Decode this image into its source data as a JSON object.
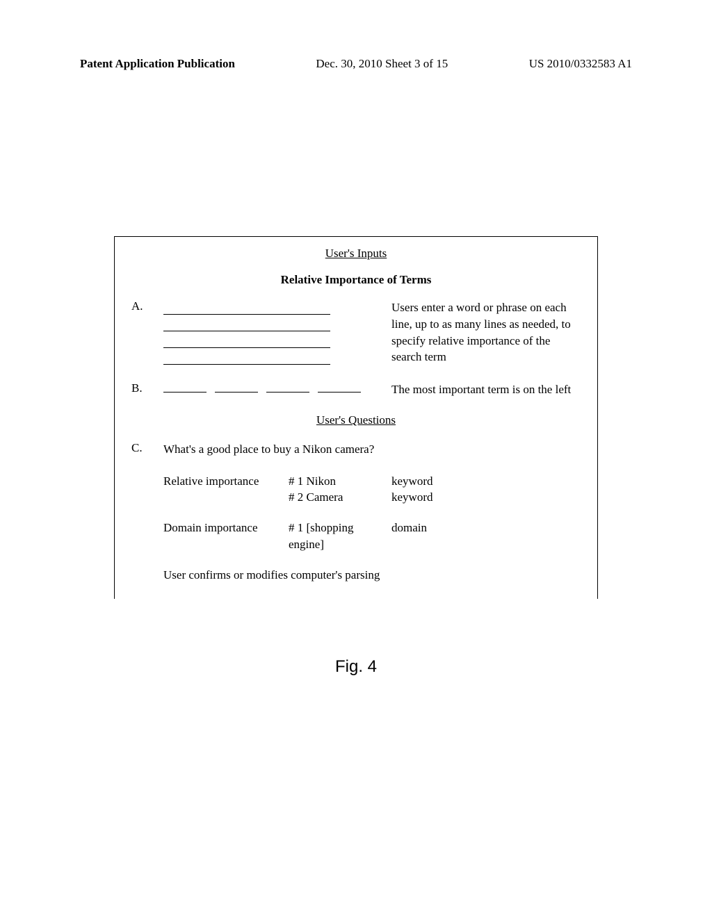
{
  "header": {
    "left": "Patent Application Publication",
    "center": "Dec. 30, 2010  Sheet 3 of 15",
    "right": "US 2010/0332583 A1"
  },
  "figure": {
    "main_title": "User's Inputs",
    "subtitle": "Relative Importance of Terms",
    "section_a": {
      "letter": "A.",
      "description": "Users enter a word or phrase on each line, up to as many lines as needed, to specify relative importance of the search term"
    },
    "section_b": {
      "letter": "B.",
      "description": "The most important term is on the left"
    },
    "questions_title": "User's Questions",
    "section_c": {
      "letter": "C.",
      "question": "What's a good place to buy a Nikon camera?",
      "relative_label": "Relative importance",
      "relative_val1": "# 1 Nikon",
      "relative_val2": "# 2 Camera",
      "relative_type1": "keyword",
      "relative_type2": "keyword",
      "domain_label": "Domain importance",
      "domain_val": "# 1 [shopping engine]",
      "domain_type": "domain",
      "confirm": "User confirms or modifies computer's parsing"
    },
    "caption": "Fig. 4"
  }
}
